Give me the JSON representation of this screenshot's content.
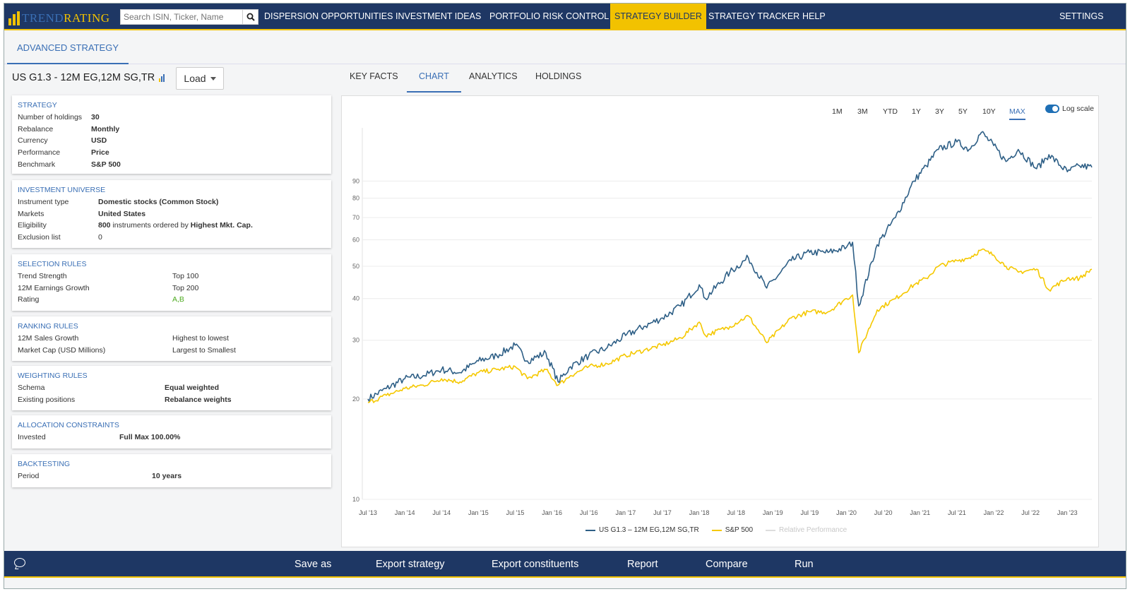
{
  "topnav": {
    "logo": {
      "part1": "TREND",
      "part2": "RATING"
    },
    "search_placeholder": "Search ISIN, Ticker, Name",
    "items": [
      "DISPERSION OPPORTUNITIES",
      "INVESTMENT IDEAS",
      "PORTFOLIO RISK CONTROL",
      "STRATEGY BUILDER",
      "STRATEGY TRACKER",
      "HELP"
    ],
    "active_item": "STRATEGY BUILDER",
    "settings": "SETTINGS"
  },
  "subtab": "ADVANCED STRATEGY",
  "strategy": {
    "name": "US G1.3 - 12M EG,12M SG,TR",
    "load_label": "Load"
  },
  "cards": {
    "strategy": {
      "title": "STRATEGY",
      "rows": [
        {
          "k": "Number of holdings",
          "v": "30"
        },
        {
          "k": "Rebalance",
          "v": "Monthly"
        },
        {
          "k": "Currency",
          "v": "USD"
        },
        {
          "k": "Performance",
          "v": "Price"
        },
        {
          "k": "Benchmark",
          "v": "S&P 500"
        }
      ]
    },
    "universe": {
      "title": "INVESTMENT UNIVERSE",
      "rows": [
        {
          "k": "Instrument type",
          "v": "Domestic stocks (Common Stock)"
        },
        {
          "k": "Markets",
          "v": "United States"
        },
        {
          "k": "Eligibility",
          "v1": "800",
          "v2": "instruments ordered by",
          "v3": "Highest Mkt. Cap."
        },
        {
          "k": "Exclusion list",
          "v": "0"
        }
      ]
    },
    "selection": {
      "title": "SELECTION RULES",
      "rows": [
        {
          "k": "Trend Strength",
          "v": "Top 100"
        },
        {
          "k": "12M Earnings Growth",
          "v": "Top 200"
        },
        {
          "k": "Rating",
          "v": "A,B"
        }
      ]
    },
    "ranking": {
      "title": "RANKING RULES",
      "rows": [
        {
          "k": "12M Sales Growth",
          "v": "Highest to lowest"
        },
        {
          "k": "Market Cap (USD Millions)",
          "v": "Largest to Smallest"
        }
      ]
    },
    "weighting": {
      "title": "WEIGHTING RULES",
      "rows": [
        {
          "k": "Schema",
          "v": "Equal weighted"
        },
        {
          "k": "Existing positions",
          "v": "Rebalance weights"
        }
      ]
    },
    "allocation": {
      "title": "ALLOCATION CONSTRAINTS",
      "rows": [
        {
          "k": "Invested",
          "v": "Full Max 100.00%"
        }
      ]
    },
    "backtesting": {
      "title": "BACKTESTING",
      "rows": [
        {
          "k": "Period",
          "v": "10 years"
        }
      ]
    }
  },
  "right_tabs": [
    "KEY FACTS",
    "CHART",
    "ANALYTICS",
    "HOLDINGS"
  ],
  "active_right_tab": "CHART",
  "ranges": [
    "1M",
    "3M",
    "YTD",
    "1Y",
    "3Y",
    "5Y",
    "10Y",
    "MAX"
  ],
  "active_range": "MAX",
  "log_scale_label": "Log scale",
  "log_scale_on": true,
  "bottombar": {
    "actions": [
      "Save as",
      "Export strategy",
      "Export constituents",
      "Report",
      "Compare",
      "Run"
    ]
  },
  "colors": {
    "navy": "#1e3764",
    "gold": "#f2c200",
    "accent": "#3a6fb5",
    "strategy_line": "#2e5f86",
    "benchmark_line": "#f5c800"
  },
  "chart_data": {
    "type": "line",
    "yscale": "log",
    "ylim": [
      10,
      130
    ],
    "yticks": [
      10,
      20,
      30,
      40,
      50,
      60,
      70,
      80,
      90
    ],
    "xlim": [
      "2013-07",
      "2023-05"
    ],
    "xticks": [
      "Jul '13",
      "Jan '14",
      "Jul '14",
      "Jan '15",
      "Jul '15",
      "Jan '16",
      "Jul '16",
      "Jan '17",
      "Jul '17",
      "Jan '18",
      "Jul '18",
      "Jan '19",
      "Jul '19",
      "Jan '20",
      "Jul '20",
      "Jan '21",
      "Jul '21",
      "Jan '22",
      "Jul '22",
      "Jan '23"
    ],
    "grid": true,
    "legend_position": "bottom",
    "series": [
      {
        "name": "US G1.3 – 12M EG,12M SG,TR",
        "color": "#2e5f86",
        "x": [
          "2013-07",
          "2013-10",
          "2014-01",
          "2014-04",
          "2014-07",
          "2014-10",
          "2015-01",
          "2015-04",
          "2015-07",
          "2015-09",
          "2015-12",
          "2016-02",
          "2016-04",
          "2016-07",
          "2016-10",
          "2017-01",
          "2017-04",
          "2017-07",
          "2017-10",
          "2018-01",
          "2018-02",
          "2018-06",
          "2018-09",
          "2018-12",
          "2019-04",
          "2019-07",
          "2019-10",
          "2020-01",
          "2020-02",
          "2020-03",
          "2020-06",
          "2020-09",
          "2020-12",
          "2021-02",
          "2021-04",
          "2021-07",
          "2021-09",
          "2021-11",
          "2022-01",
          "2022-03",
          "2022-05",
          "2022-08",
          "2022-10",
          "2023-01",
          "2023-03",
          "2023-05"
        ],
        "y": [
          20,
          21.5,
          23,
          23.5,
          24.5,
          24,
          26,
          27,
          29,
          26,
          27.5,
          22.5,
          25,
          27,
          28.5,
          31,
          33,
          35,
          38,
          44,
          40,
          48,
          53,
          43,
          52,
          55,
          55,
          57,
          59,
          38,
          58,
          70,
          90,
          100,
          112,
          118,
          112,
          126,
          115,
          103,
          112,
          98,
          108,
          96,
          100,
          99
        ]
      },
      {
        "name": "S&P 500",
        "color": "#f5c800",
        "x": [
          "2013-07",
          "2013-10",
          "2014-01",
          "2014-04",
          "2014-07",
          "2014-10",
          "2015-01",
          "2015-04",
          "2015-07",
          "2015-09",
          "2015-12",
          "2016-02",
          "2016-04",
          "2016-07",
          "2016-10",
          "2017-01",
          "2017-04",
          "2017-07",
          "2017-10",
          "2018-01",
          "2018-02",
          "2018-06",
          "2018-09",
          "2018-12",
          "2019-04",
          "2019-07",
          "2019-10",
          "2020-01",
          "2020-02",
          "2020-03",
          "2020-06",
          "2020-09",
          "2020-12",
          "2021-02",
          "2021-04",
          "2021-07",
          "2021-09",
          "2021-11",
          "2022-01",
          "2022-03",
          "2022-05",
          "2022-08",
          "2022-10",
          "2023-01",
          "2023-03",
          "2023-05"
        ],
        "y": [
          19.5,
          20.5,
          21.5,
          22,
          23,
          22.5,
          24,
          24.5,
          25,
          23,
          24.5,
          22,
          23.5,
          25,
          25.5,
          27,
          28,
          29,
          30.5,
          34,
          31,
          33,
          35.5,
          29.5,
          35,
          36.5,
          36.5,
          40,
          41,
          27.5,
          37,
          40,
          44,
          46,
          50,
          52,
          53,
          56,
          54,
          50,
          48,
          49,
          42.5,
          46,
          46,
          49
        ]
      },
      {
        "name": "Relative Performance",
        "color": "#cccccc",
        "x": [],
        "y": []
      }
    ]
  }
}
